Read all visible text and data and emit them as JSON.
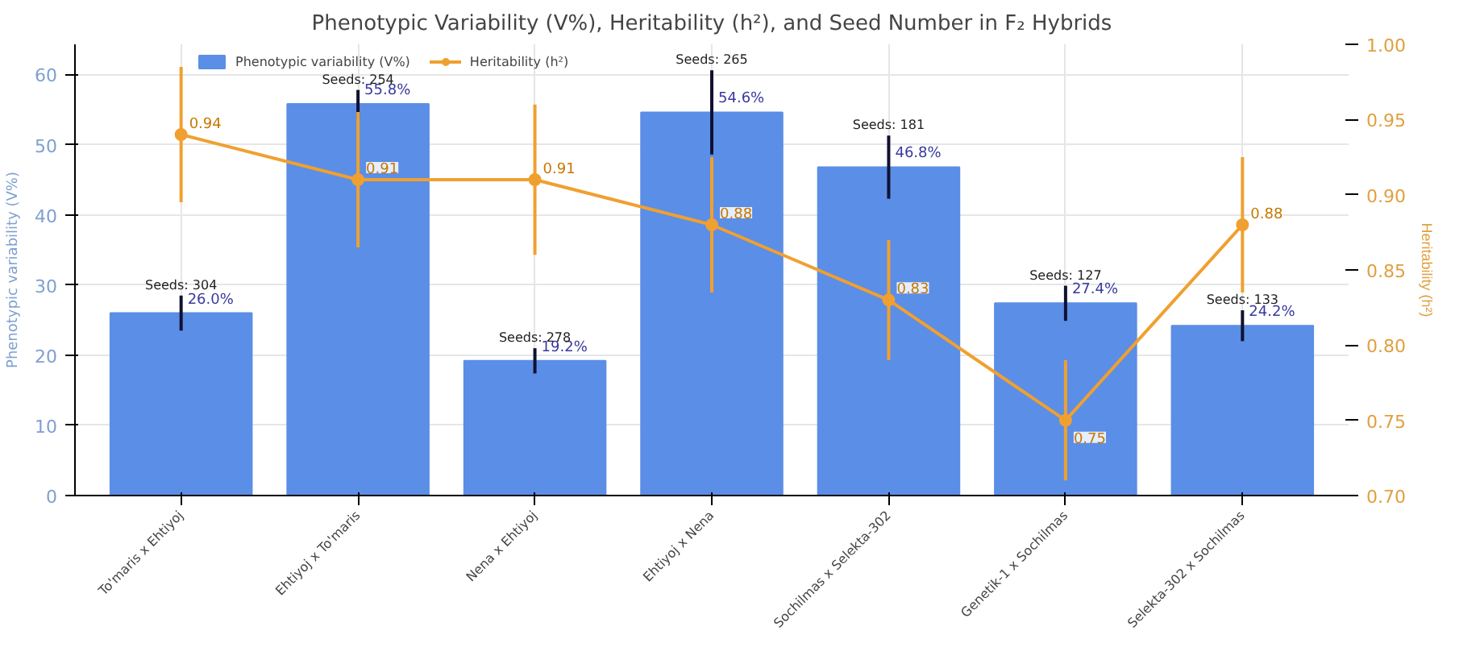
{
  "chart_data": {
    "type": "bar",
    "title": "Phenotypic Variability (V%), Heritability (h²), and Seed Number in F₂ Hybrids",
    "ylabel": "Phenotypic variability (V%)",
    "y2label": "Heritability (h²)",
    "categories": [
      "To'maris x Ehtiyoj",
      "Ehtiyoj x To'maris",
      "Nena x Ehtiyoj",
      "Ehtiyoj x Nena",
      "Sochilmas x Selekta-302",
      "Genetik-1 x Sochilmas",
      "Selekta-302 x Sochilmas"
    ],
    "series": [
      {
        "name": "Phenotypic variability (V%)",
        "color": "#5b8ee6",
        "values": [
          26.0,
          55.8,
          19.2,
          54.6,
          46.8,
          27.4,
          24.2
        ],
        "errors": [
          2.5,
          2,
          1.8,
          6,
          4.5,
          2.5,
          2.2
        ],
        "value_labels": [
          "26.0%",
          "55.8%",
          "19.2%",
          "54.6%",
          "46.8%",
          "27.4%",
          "24.2%"
        ]
      },
      {
        "name": "Heritability (h²)",
        "type": "line",
        "axis": "y2",
        "color": "#f0a030",
        "marker": "circle",
        "values": [
          0.94,
          0.91,
          0.91,
          0.88,
          0.83,
          0.75,
          0.88
        ],
        "errors": [
          0.045,
          0.045,
          0.05,
          0.045,
          0.04,
          0.04,
          0.045
        ],
        "value_labels": [
          "0.94",
          "0.91",
          "0.91",
          "0.88",
          "0.83",
          "0.75",
          "0.88"
        ]
      }
    ],
    "annotations": [
      "Seeds: 304",
      "Seeds: 254",
      "Seeds: 278",
      "Seeds: 265",
      "Seeds: 181",
      "Seeds: 127",
      "Seeds: 133"
    ],
    "ylim": [
      0,
      64.3
    ],
    "yticks": [
      0,
      10,
      20,
      30,
      40,
      50,
      60
    ],
    "y2lim": [
      0.7,
      1.0
    ],
    "y2ticks": [
      {
        "value": 0.7,
        "label": "0.70"
      },
      {
        "value": 0.75,
        "label": "0.75"
      },
      {
        "value": 0.8,
        "label": "0.80"
      },
      {
        "value": 0.85,
        "label": "0.85"
      },
      {
        "value": 0.9,
        "label": "0.90"
      },
      {
        "value": 0.95,
        "label": "0.95"
      },
      {
        "value": 1.0,
        "label": "1.00"
      }
    ],
    "grid": true,
    "legend": "top left"
  }
}
